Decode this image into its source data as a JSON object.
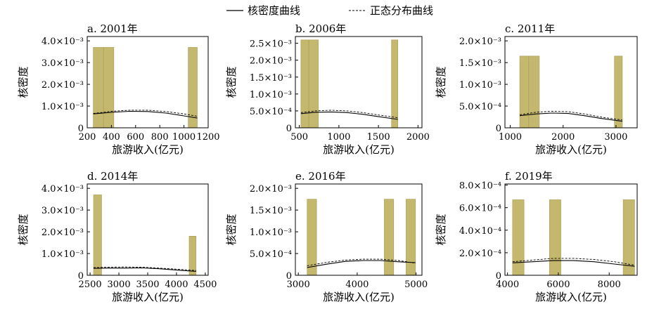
{
  "legend": {
    "kde_label": "核密度曲线",
    "normal_label": "正态分布曲线"
  },
  "colors": {
    "bar_fill": "#c4b86e",
    "bar_stroke": "#a89a50",
    "kde_line": "#000000",
    "normal_line": "#000000"
  },
  "chart_data": [
    {
      "type": "bar",
      "title": "a. 2001年",
      "xlabel": "旅游收入(亿元)",
      "ylabel": "核密度",
      "xlim": [
        200,
        1200
      ],
      "ylim": [
        0,
        0.0042
      ],
      "xticks": [
        200,
        400,
        600,
        800,
        1000,
        1200
      ],
      "xtick_labels": [
        "200",
        "400",
        "600",
        "800",
        "1000",
        "1200"
      ],
      "yticks": [
        0,
        0.001,
        0.002,
        0.003,
        0.004
      ],
      "ytick_labels": [
        "0",
        "1.0×10⁻³",
        "2.0×10⁻³",
        "3.0×10⁻³",
        "4.0×10⁻³"
      ],
      "bars": [
        {
          "x0": 250,
          "x1": 335,
          "value": 0.0037
        },
        {
          "x0": 335,
          "x1": 420,
          "value": 0.0037
        },
        {
          "x0": 1035,
          "x1": 1110,
          "value": 0.0037
        }
      ],
      "kde": {
        "x": [
          250,
          400,
          550,
          700,
          850,
          1000,
          1110
        ],
        "y": [
          0.00064,
          0.00071,
          0.00076,
          0.00075,
          0.00068,
          0.00055,
          0.00045
        ]
      },
      "normal": {
        "x": [
          250,
          400,
          550,
          700,
          850,
          1000,
          1110
        ],
        "y": [
          0.00066,
          0.00076,
          0.00081,
          0.00081,
          0.00075,
          0.00064,
          0.00053
        ]
      }
    },
    {
      "type": "bar",
      "title": "b. 2006年",
      "xlabel": "旅游收入(亿元)",
      "ylabel": "核密度",
      "xlim": [
        450,
        2050
      ],
      "ylim": [
        0,
        0.0027
      ],
      "xticks": [
        500,
        1000,
        1500,
        2000
      ],
      "xtick_labels": [
        "500",
        "1000",
        "1500",
        "2000"
      ],
      "yticks": [
        0,
        0.0005,
        0.001,
        0.0015,
        0.002,
        0.0025
      ],
      "ytick_labels": [
        "0",
        "5.0×10⁻⁴",
        "1.0×10⁻³",
        "1.5×10⁻³",
        "2.0×10⁻³",
        "2.5×10⁻³"
      ],
      "bars": [
        {
          "x0": 520,
          "x1": 620,
          "value": 0.0026
        },
        {
          "x0": 620,
          "x1": 740,
          "value": 0.0026
        },
        {
          "x0": 1665,
          "x1": 1745,
          "value": 0.0026
        }
      ],
      "kde": {
        "x": [
          520,
          700,
          900,
          1100,
          1300,
          1500,
          1745
        ],
        "y": [
          0.00042,
          0.00046,
          0.00047,
          0.00045,
          0.0004,
          0.00033,
          0.00025
        ]
      },
      "normal": {
        "x": [
          520,
          700,
          900,
          1100,
          1300,
          1500,
          1745
        ],
        "y": [
          0.00045,
          0.0005,
          0.00052,
          0.0005,
          0.00045,
          0.00038,
          0.0003
        ]
      }
    },
    {
      "type": "bar",
      "title": "c. 2011年",
      "xlabel": "旅游收入(亿元)",
      "ylabel": "核密度",
      "xlim": [
        900,
        3400
      ],
      "ylim": [
        0,
        0.0021
      ],
      "xticks": [
        1000,
        2000,
        3000
      ],
      "xtick_labels": [
        "1000",
        "2000",
        "3000"
      ],
      "yticks": [
        0,
        0.0005,
        0.001,
        0.0015,
        0.002
      ],
      "ytick_labels": [
        "0",
        "5.0×10⁻⁴",
        "1.0×10⁻³",
        "1.5×10⁻³",
        "2.0×10⁻³"
      ],
      "bars": [
        {
          "x0": 1180,
          "x1": 1350,
          "value": 0.00165
        },
        {
          "x0": 1350,
          "x1": 1550,
          "value": 0.00165
        },
        {
          "x0": 2970,
          "x1": 3120,
          "value": 0.00165
        }
      ],
      "kde": {
        "x": [
          1180,
          1500,
          1800,
          2100,
          2400,
          2700,
          3120
        ],
        "y": [
          0.00028,
          0.00032,
          0.00034,
          0.00033,
          0.00028,
          0.00022,
          0.00015
        ]
      },
      "normal": {
        "x": [
          1180,
          1500,
          1800,
          2100,
          2400,
          2700,
          3120
        ],
        "y": [
          0.0003,
          0.00036,
          0.00038,
          0.00037,
          0.00032,
          0.00025,
          0.00018
        ]
      }
    },
    {
      "type": "bar",
      "title": "d. 2014年",
      "xlabel": "旅游收入(亿元)",
      "ylabel": "核密度",
      "xlim": [
        2450,
        4550
      ],
      "ylim": [
        0,
        0.0042
      ],
      "xticks": [
        2500,
        3000,
        3500,
        4000,
        4500
      ],
      "xtick_labels": [
        "2500",
        "3000",
        "3500",
        "4000",
        "4500"
      ],
      "yticks": [
        0,
        0.001,
        0.002,
        0.003,
        0.004
      ],
      "ytick_labels": [
        "0",
        "1.0×10⁻³",
        "2.0×10⁻³",
        "3.0×10⁻³",
        "4.0×10⁻³"
      ],
      "bars": [
        {
          "x0": 2560,
          "x1": 2700,
          "value": 0.0037
        },
        {
          "x0": 4220,
          "x1": 4340,
          "value": 0.0018
        }
      ],
      "kde": {
        "x": [
          2560,
          2800,
          3100,
          3400,
          3700,
          4000,
          4340
        ],
        "y": [
          0.00032,
          0.00033,
          0.00033,
          0.00034,
          0.0003,
          0.00024,
          0.00018
        ]
      },
      "normal": {
        "x": [
          2560,
          2800,
          3100,
          3400,
          3700,
          4000,
          4340
        ],
        "y": [
          0.00035,
          0.00037,
          0.00038,
          0.00037,
          0.00033,
          0.00028,
          0.00022
        ]
      }
    },
    {
      "type": "bar",
      "title": "e. 2016年",
      "xlabel": "旅游收入(亿元)",
      "ylabel": "核密度",
      "xlim": [
        2950,
        5100
      ],
      "ylim": [
        0,
        0.0021
      ],
      "xticks": [
        3000,
        4000,
        5000
      ],
      "xtick_labels": [
        "3000",
        "4000",
        "5000"
      ],
      "yticks": [
        0,
        0.0005,
        0.001,
        0.0015,
        0.002
      ],
      "ytick_labels": [
        "0",
        "5.0×10⁻⁴",
        "1.0×10⁻³",
        "1.5×10⁻³",
        "2.0×10⁻³"
      ],
      "bars": [
        {
          "x0": 3150,
          "x1": 3310,
          "value": 0.00175
        },
        {
          "x0": 4460,
          "x1": 4620,
          "value": 0.00175
        },
        {
          "x0": 4830,
          "x1": 4990,
          "value": 0.00175
        }
      ],
      "kde": {
        "x": [
          3150,
          3500,
          3800,
          4100,
          4400,
          4700,
          4990
        ],
        "y": [
          0.00018,
          0.00026,
          0.00032,
          0.00034,
          0.00034,
          0.00031,
          0.00029
        ]
      },
      "normal": {
        "x": [
          3150,
          3500,
          3800,
          4100,
          4400,
          4700,
          4990
        ],
        "y": [
          0.00022,
          0.0003,
          0.00035,
          0.00037,
          0.00037,
          0.00034,
          0.00028
        ]
      }
    },
    {
      "type": "bar",
      "title": "f. 2019年",
      "xlabel": "旅游收入(亿元)",
      "ylabel": "核密度",
      "xlim": [
        3900,
        9100
      ],
      "ylim": [
        0,
        0.00081
      ],
      "xticks": [
        4000,
        6000,
        8000
      ],
      "xtick_labels": [
        "4000",
        "6000",
        "8000"
      ],
      "yticks": [
        0,
        0.0002,
        0.0004,
        0.0006,
        0.0008
      ],
      "ytick_labels": [
        "0",
        "2.0×10⁻⁴",
        "4.0×10⁻⁴",
        "6.0×10⁻⁴",
        "8.0×10⁻⁴"
      ],
      "bars": [
        {
          "x0": 4200,
          "x1": 4650,
          "value": 0.00067
        },
        {
          "x0": 5650,
          "x1": 6100,
          "value": 0.00067
        },
        {
          "x0": 8550,
          "x1": 9000,
          "value": 0.00067
        }
      ],
      "kde": {
        "x": [
          4200,
          5000,
          5800,
          6600,
          7400,
          8200,
          9000
        ],
        "y": [
          0.00011,
          0.00012,
          0.00013,
          0.00013,
          0.00012,
          0.0001,
          8e-05
        ]
      },
      "normal": {
        "x": [
          4200,
          5000,
          5800,
          6600,
          7400,
          8200,
          9000
        ],
        "y": [
          0.00012,
          0.000135,
          0.00015,
          0.00015,
          0.00014,
          0.00012,
          9e-05
        ]
      }
    }
  ]
}
